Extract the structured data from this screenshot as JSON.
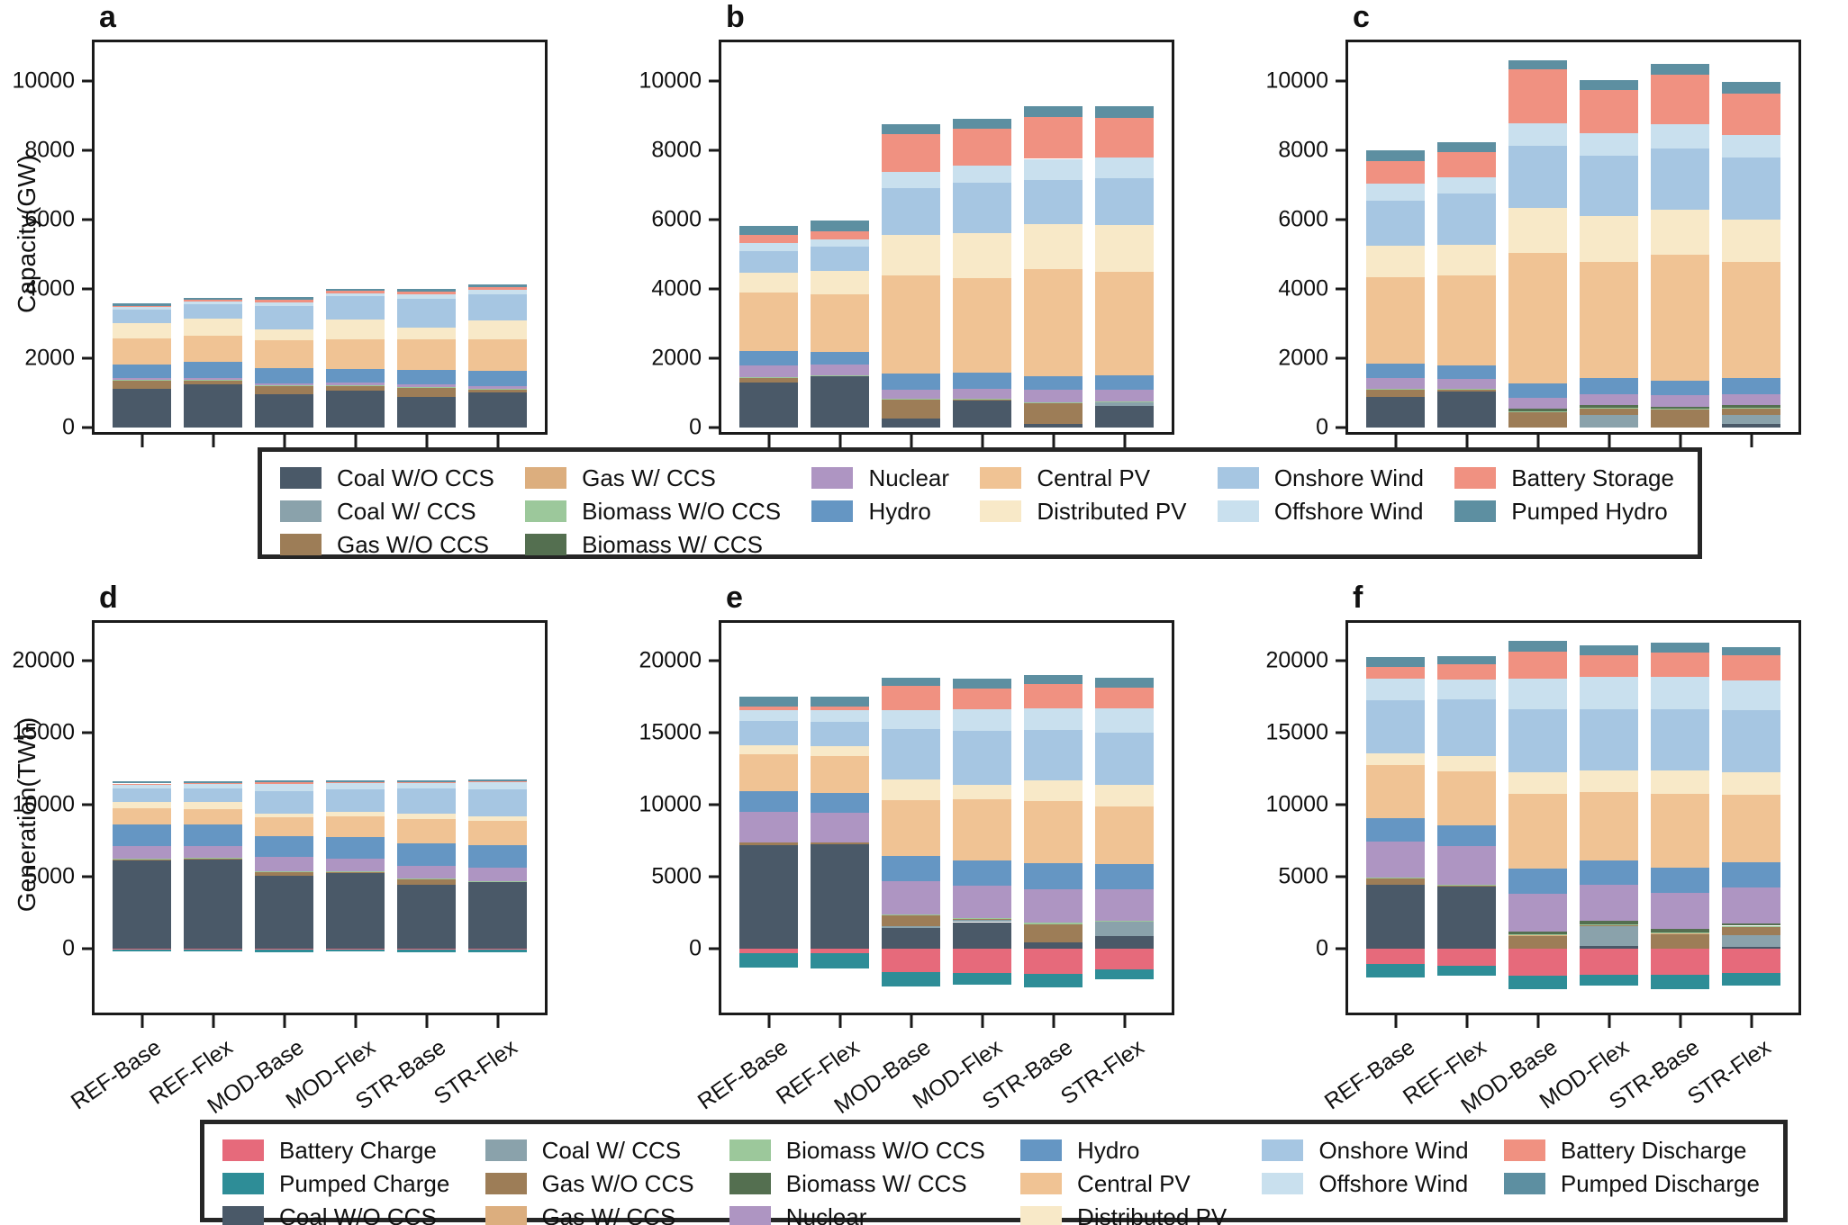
{
  "chart_data": {
    "type": "bar",
    "stacked": true,
    "grid": false,
    "ylabel_top": "Capacity(GW)",
    "ylabel_bottom": "Generation(TWh)",
    "categories": [
      "REF-Base",
      "REF-Flex",
      "MOD-Base",
      "MOD-Flex",
      "STR-Base",
      "STR-Flex"
    ],
    "tech": {
      "coal_wo": {
        "label": "Coal W/O CCS",
        "color": "#4a5968"
      },
      "coal_w": {
        "label": "Coal W/ CCS",
        "color": "#8aa2ab"
      },
      "gas_wo": {
        "label": "Gas W/O CCS",
        "color": "#9d7d57"
      },
      "gas_w": {
        "label": "Gas W/ CCS",
        "color": "#dcae7e"
      },
      "biomass_wo": {
        "label": "Biomass W/O CCS",
        "color": "#9cc89b"
      },
      "biomass_w": {
        "label": "Biomass W/ CCS",
        "color": "#546f50"
      },
      "nuclear": {
        "label": "Nuclear",
        "color": "#ae95c2"
      },
      "hydro": {
        "label": "Hydro",
        "color": "#6596c3"
      },
      "central_pv": {
        "label": "Central PV",
        "color": "#f0c394"
      },
      "distributed_pv": {
        "label": "Distributed PV",
        "color": "#f8e9c8"
      },
      "onshore": {
        "label": "Onshore Wind",
        "color": "#a6c6e2"
      },
      "offshore": {
        "label": "Offshore Wind",
        "color": "#c9e0ee"
      },
      "battery_storage": {
        "label": "Battery Storage",
        "color": "#f09181"
      },
      "pumped_hydro": {
        "label": "Pumped Hydro",
        "color": "#5d8fa1"
      },
      "battery_charge": {
        "label": "Battery Charge",
        "color": "#e66a7b"
      },
      "pumped_charge": {
        "label": "Pumped Charge",
        "color": "#2e8d97"
      },
      "battery_discharge": {
        "label": "Battery Discharge",
        "color": "#f09181"
      },
      "pumped_discharge": {
        "label": "Pumped Discharge",
        "color": "#5d8fa1"
      }
    },
    "stack_order": {
      "capacity": [
        "coal_wo",
        "coal_w",
        "gas_wo",
        "gas_w",
        "biomass_wo",
        "biomass_w",
        "nuclear",
        "hydro",
        "central_pv",
        "distributed_pv",
        "onshore",
        "offshore",
        "battery_storage",
        "pumped_hydro"
      ],
      "generation": [
        "battery_charge",
        "pumped_charge",
        "coal_wo",
        "coal_w",
        "gas_wo",
        "gas_w",
        "biomass_wo",
        "biomass_w",
        "nuclear",
        "hydro",
        "central_pv",
        "distributed_pv",
        "onshore",
        "offshore",
        "battery_discharge",
        "pumped_discharge"
      ]
    },
    "panels": [
      {
        "label": "a",
        "kind": "capacity",
        "unit": "GW",
        "ylim": [
          -140,
          11130
        ],
        "yticks": [
          0,
          2000,
          4000,
          6000,
          8000,
          10000
        ],
        "values": {
          "coal_wo": [
            1100,
            1230,
            950,
            1060,
            880,
            1000
          ],
          "gas_wo": [
            250,
            120,
            240,
            150,
            270,
            90
          ],
          "biomass_wo": [
            15,
            15,
            15,
            15,
            20,
            20
          ],
          "nuclear": [
            60,
            70,
            60,
            70,
            70,
            80
          ],
          "hydro": [
            400,
            460,
            440,
            400,
            420,
            430
          ],
          "central_pv": [
            740,
            760,
            820,
            850,
            880,
            930
          ],
          "distributed_pv": [
            450,
            480,
            300,
            560,
            340,
            540
          ],
          "onshore": [
            380,
            410,
            680,
            680,
            830,
            750
          ],
          "offshore": [
            80,
            80,
            100,
            80,
            120,
            140
          ],
          "battery_storage": [
            40,
            50,
            90,
            70,
            90,
            80
          ],
          "pumped_hydro": [
            60,
            70,
            70,
            70,
            70,
            80
          ]
        }
      },
      {
        "label": "b",
        "kind": "capacity",
        "unit": "GW",
        "ylim": [
          -140,
          11130
        ],
        "yticks": [
          0,
          2000,
          4000,
          6000,
          8000,
          10000
        ],
        "values": {
          "coal_wo": [
            1300,
            1480,
            250,
            760,
            90,
            620
          ],
          "coal_w": [
            0,
            0,
            0,
            0,
            0,
            90
          ],
          "gas_wo": [
            130,
            0,
            550,
            30,
            610,
            0
          ],
          "biomass_wo": [
            20,
            20,
            30,
            30,
            30,
            40
          ],
          "nuclear": [
            330,
            300,
            250,
            280,
            350,
            330
          ],
          "hydro": [
            420,
            380,
            480,
            470,
            400,
            420
          ],
          "central_pv": [
            1700,
            1650,
            2820,
            2750,
            3100,
            3000
          ],
          "distributed_pv": [
            570,
            700,
            1180,
            1290,
            1290,
            1350
          ],
          "onshore": [
            610,
            680,
            1350,
            1450,
            1270,
            1350
          ],
          "offshore": [
            250,
            230,
            480,
            500,
            620,
            600
          ],
          "battery_storage": [
            230,
            230,
            1090,
            1060,
            1200,
            1150
          ],
          "pumped_hydro": [
            270,
            310,
            280,
            300,
            310,
            340
          ]
        }
      },
      {
        "label": "c",
        "kind": "capacity",
        "unit": "GW",
        "ylim": [
          -140,
          11130
        ],
        "yticks": [
          0,
          2000,
          4000,
          6000,
          8000,
          10000
        ],
        "values": {
          "coal_wo": [
            880,
            1020,
            0,
            0,
            0,
            100
          ],
          "coal_w": [
            0,
            0,
            0,
            350,
            0,
            250
          ],
          "gas_wo": [
            220,
            60,
            450,
            200,
            520,
            200
          ],
          "biomass_wo": [
            20,
            20,
            20,
            20,
            20,
            20
          ],
          "biomass_w": [
            0,
            0,
            60,
            60,
            60,
            60
          ],
          "nuclear": [
            300,
            300,
            310,
            330,
            330,
            330
          ],
          "hydro": [
            420,
            380,
            430,
            470,
            420,
            470
          ],
          "central_pv": [
            2490,
            2600,
            3780,
            3350,
            3650,
            3350
          ],
          "distributed_pv": [
            920,
            900,
            1300,
            1320,
            1300,
            1220
          ],
          "onshore": [
            1300,
            1470,
            1800,
            1750,
            1750,
            1800
          ],
          "offshore": [
            500,
            470,
            650,
            650,
            700,
            650
          ],
          "battery_storage": [
            650,
            730,
            1550,
            1250,
            1450,
            1200
          ],
          "pumped_hydro": [
            300,
            300,
            250,
            300,
            300,
            330
          ]
        }
      },
      {
        "label": "d",
        "kind": "generation",
        "unit": "TWh",
        "ylim": [
          -4450,
          22600
        ],
        "yticks": [
          0,
          5000,
          10000,
          15000,
          20000
        ],
        "values": {
          "battery_charge": [
            -60,
            -60,
            -90,
            -80,
            -90,
            -80
          ],
          "pumped_charge": [
            -170,
            -170,
            -150,
            -150,
            -160,
            -170
          ],
          "coal_wo": [
            6100,
            6200,
            5050,
            5250,
            4400,
            4600
          ],
          "gas_wo": [
            140,
            100,
            280,
            60,
            430,
            60
          ],
          "biomass_wo": [
            20,
            20,
            20,
            20,
            20,
            20
          ],
          "nuclear": [
            830,
            780,
            990,
            890,
            890,
            940
          ],
          "hydro": [
            1500,
            1500,
            1450,
            1500,
            1550,
            1550
          ],
          "central_pv": [
            1150,
            1100,
            1300,
            1450,
            1700,
            1700
          ],
          "distributed_pv": [
            400,
            450,
            250,
            300,
            350,
            300
          ],
          "onshore": [
            950,
            950,
            1550,
            1600,
            1750,
            1900
          ],
          "offshore": [
            300,
            300,
            550,
            400,
            400,
            500
          ],
          "battery_discharge": [
            60,
            60,
            90,
            70,
            60,
            60
          ],
          "pumped_discharge": [
            150,
            150,
            120,
            140,
            100,
            100
          ]
        }
      },
      {
        "label": "e",
        "kind": "generation",
        "unit": "TWh",
        "ylim": [
          -4450,
          22600
        ],
        "yticks": [
          0,
          5000,
          10000,
          15000,
          20000
        ],
        "values": {
          "battery_charge": [
            -320,
            -320,
            -1650,
            -1700,
            -1750,
            -1450
          ],
          "pumped_charge": [
            -1000,
            -1050,
            -1000,
            -800,
            -950,
            -700
          ],
          "coal_wo": [
            7200,
            7250,
            1400,
            1830,
            450,
            850
          ],
          "coal_w": [
            0,
            0,
            170,
            150,
            0,
            1000
          ],
          "gas_wo": [
            150,
            100,
            750,
            100,
            1250,
            0
          ],
          "biomass_wo": [
            0,
            0,
            50,
            50,
            80,
            80
          ],
          "nuclear": [
            2150,
            2100,
            2300,
            2200,
            2300,
            2200
          ],
          "hydro": [
            1450,
            1350,
            1750,
            1800,
            1850,
            1750
          ],
          "central_pv": [
            2500,
            2550,
            3900,
            4200,
            4300,
            4000
          ],
          "distributed_pv": [
            650,
            700,
            1400,
            1050,
            1450,
            1500
          ],
          "onshore": [
            1700,
            1700,
            3500,
            3700,
            3500,
            3600
          ],
          "offshore": [
            750,
            800,
            1300,
            1500,
            1500,
            1700
          ],
          "battery_discharge": [
            250,
            250,
            1700,
            1450,
            1700,
            1400
          ],
          "pumped_discharge": [
            650,
            700,
            580,
            670,
            600,
            700
          ]
        }
      },
      {
        "label": "f",
        "kind": "generation",
        "unit": "TWh",
        "ylim": [
          -4450,
          22600
        ],
        "yticks": [
          0,
          5000,
          10000,
          15000,
          20000
        ],
        "values": {
          "battery_charge": [
            -1100,
            -1200,
            -1900,
            -1800,
            -1850,
            -1700
          ],
          "pumped_charge": [
            -900,
            -700,
            -900,
            -800,
            -950,
            -900
          ],
          "coal_wo": [
            4450,
            4300,
            0,
            150,
            0,
            100
          ],
          "coal_w": [
            0,
            0,
            0,
            1400,
            0,
            850
          ],
          "gas_wo": [
            450,
            100,
            850,
            100,
            1000,
            600
          ],
          "gas_w": [
            0,
            0,
            100,
            0,
            100,
            0
          ],
          "biomass_wo": [
            20,
            20,
            30,
            30,
            30,
            30
          ],
          "biomass_w": [
            0,
            0,
            200,
            250,
            250,
            150
          ],
          "nuclear": [
            2500,
            2700,
            2600,
            2500,
            2450,
            2500
          ],
          "hydro": [
            1600,
            1450,
            1750,
            1700,
            1800,
            1750
          ],
          "central_pv": [
            3700,
            3750,
            5200,
            4700,
            5100,
            4700
          ],
          "distributed_pv": [
            800,
            1050,
            1500,
            1500,
            1600,
            1550
          ],
          "onshore": [
            3700,
            3950,
            4400,
            4300,
            4300,
            4300
          ],
          "offshore": [
            1500,
            1350,
            2100,
            2200,
            2200,
            2100
          ],
          "battery_discharge": [
            800,
            1050,
            1850,
            1500,
            1700,
            1700
          ],
          "pumped_discharge": [
            700,
            600,
            800,
            700,
            700,
            600
          ]
        }
      }
    ],
    "legend_top": {
      "columns": [
        [
          "coal_wo",
          "coal_w",
          "gas_wo"
        ],
        [
          "gas_w",
          "biomass_wo",
          "biomass_w"
        ],
        [
          "nuclear",
          "hydro"
        ],
        [
          "central_pv",
          "distributed_pv"
        ],
        [
          "onshore",
          "offshore"
        ],
        [
          "battery_storage",
          "pumped_hydro"
        ]
      ]
    },
    "legend_bottom": {
      "columns": [
        [
          "battery_charge",
          "pumped_charge",
          "coal_wo"
        ],
        [
          "coal_w",
          "gas_wo",
          "gas_w"
        ],
        [
          "biomass_wo",
          "biomass_w",
          "nuclear"
        ],
        [
          "hydro",
          "central_pv",
          "distributed_pv"
        ],
        [
          "onshore",
          "offshore"
        ],
        [
          "battery_discharge",
          "pumped_discharge"
        ]
      ]
    }
  }
}
